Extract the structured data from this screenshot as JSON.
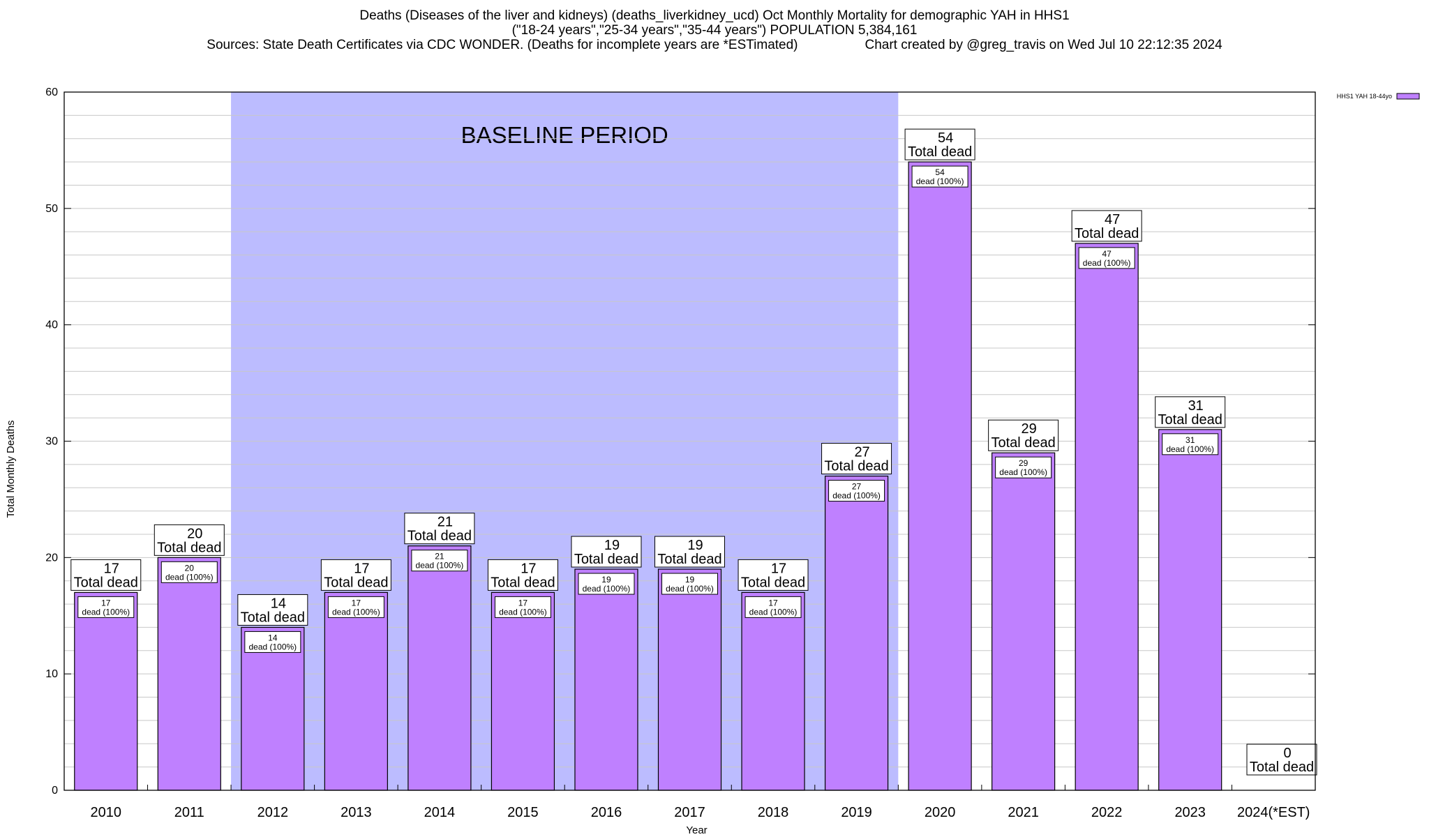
{
  "header": {
    "line1": "Deaths (Diseases of the liver and kidneys) (deaths_liverkidney_ucd) Oct Monthly Mortality for demographic YAH in HHS1",
    "line2": "(\"18-24 years\",\"25-34 years\",\"35-44 years\") POPULATION 5,384,161",
    "line3_source": "Sources: State Death Certificates via CDC WONDER. (Deaths for incomplete years are *ESTimated)",
    "line3_credit": "Chart created by @greg_travis on Wed Jul 10 22:12:35 2024"
  },
  "chart_data": {
    "type": "bar",
    "xlabel": "Year",
    "ylabel": "Total Monthly Deaths",
    "ylim": [
      0,
      60
    ],
    "y_ticks": [
      0,
      10,
      20,
      30,
      40,
      50,
      60
    ],
    "y_minor_step": 2,
    "grid": true,
    "legend_position": "top-right",
    "categories": [
      "2010",
      "2011",
      "2012",
      "2013",
      "2014",
      "2015",
      "2016",
      "2017",
      "2018",
      "2019",
      "2020",
      "2021",
      "2022",
      "2023",
      "2024(*EST)"
    ],
    "series": [
      {
        "name": "HHS1 YAH 18-44yo",
        "values": [
          17,
          20,
          14,
          17,
          21,
          17,
          19,
          19,
          17,
          27,
          54,
          29,
          47,
          31,
          0
        ]
      }
    ],
    "total_label": "Total dead",
    "inner_label": "dead (100%)",
    "baseline_period": {
      "label": "BASELINE PERIOD",
      "from": "2012",
      "to": "2019"
    },
    "colors": {
      "bar_fill": "#bf80ff",
      "bar_stroke": "#000000",
      "baseline_fill": "#bcbcff",
      "grid": "#c8c8c8"
    }
  }
}
